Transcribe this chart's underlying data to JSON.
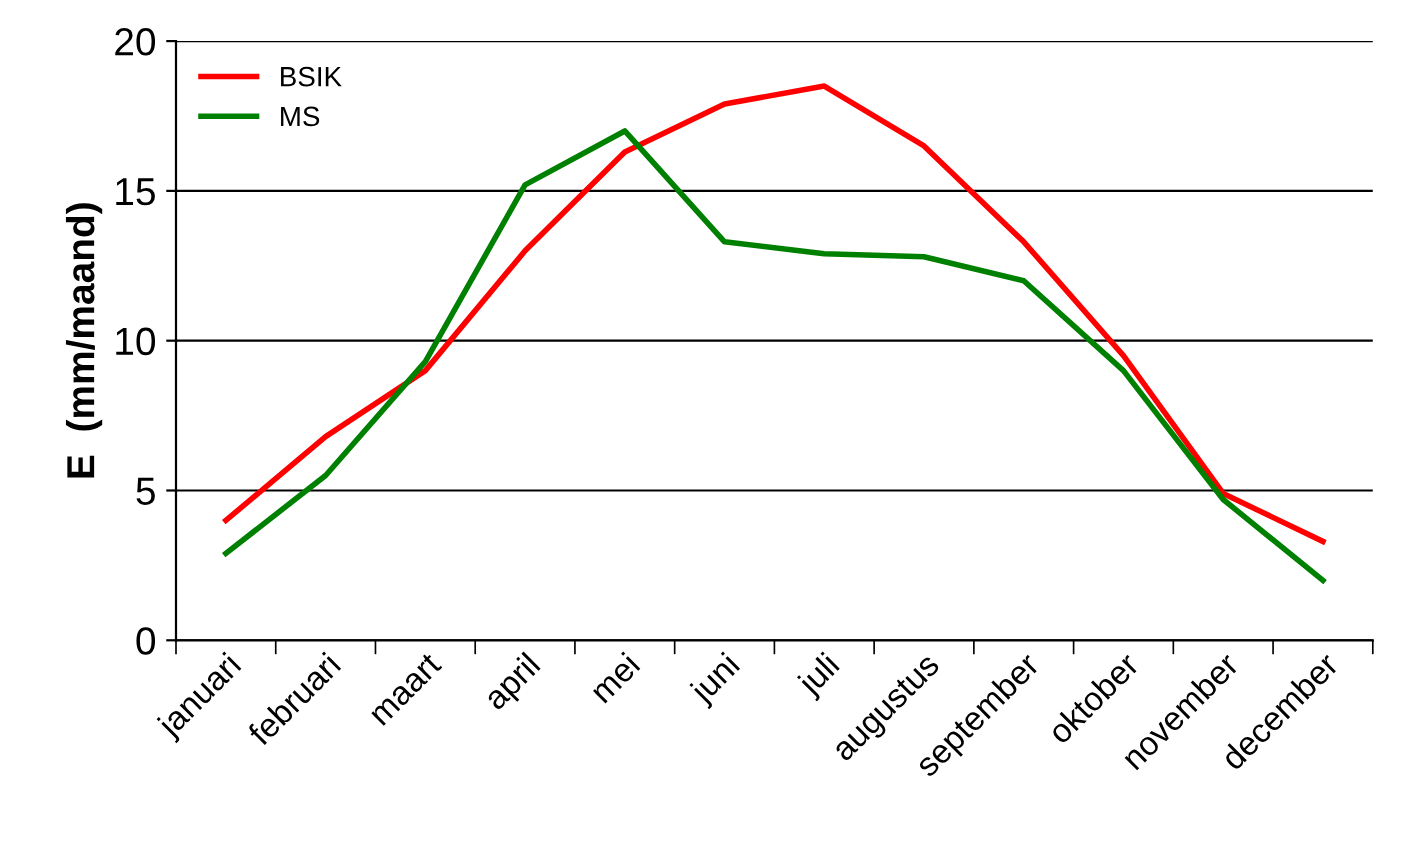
{
  "chart_data": {
    "type": "line",
    "ylabel": "E  (mm/maand)",
    "categories": [
      "januari",
      "februari",
      "maart",
      "april",
      "mei",
      "juni",
      "juli",
      "augustus",
      "september",
      "oktober",
      "november",
      "december"
    ],
    "series": [
      {
        "name": "BSIK",
        "color": "#ff0000",
        "values": [
          4.0,
          6.8,
          9.0,
          13.0,
          16.3,
          17.9,
          18.5,
          16.5,
          13.3,
          9.5,
          4.9,
          3.3
        ]
      },
      {
        "name": "MS",
        "color": "#008000",
        "values": [
          2.9,
          5.5,
          9.3,
          15.2,
          17.0,
          13.3,
          12.9,
          12.8,
          12.0,
          9.0,
          4.7,
          2.0
        ]
      }
    ],
    "ylim": [
      0,
      20
    ],
    "yticks": [
      0,
      5,
      10,
      15,
      20
    ],
    "grid": "y",
    "legend": "top left",
    "marker": "none",
    "line_style": "solid"
  }
}
